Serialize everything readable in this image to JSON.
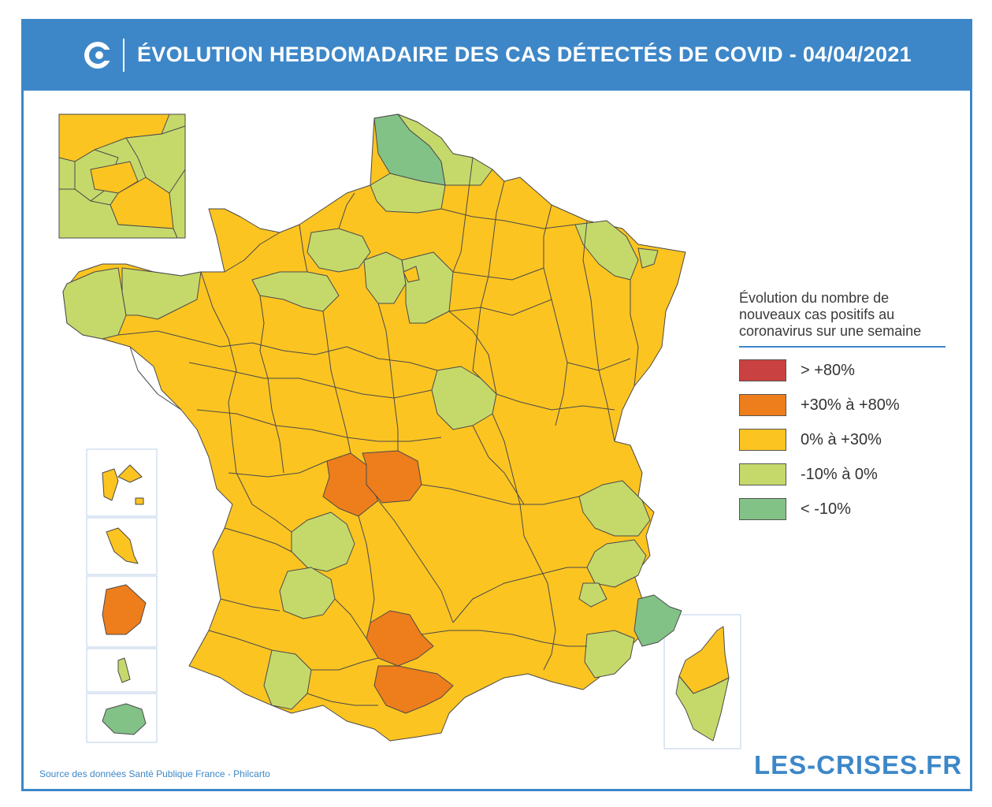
{
  "header": {
    "title": "ÉVOLUTION HEBDOMADAIRE DES CAS DÉTECTÉS DE COVID - 04/04/2021",
    "logo": "les-crises-logo-icon"
  },
  "legend": {
    "title_lines": [
      "Évolution du nombre de",
      "nouveaux cas positifs au",
      "coronavirus sur une semaine"
    ],
    "items": [
      {
        "label": "> +80%",
        "color": "#c94140"
      },
      {
        "label": "+30% à +80%",
        "color": "#ee7d1c"
      },
      {
        "label": "0% à +30%",
        "color": "#fbc421"
      },
      {
        "label": "-10% à 0%",
        "color": "#c5d96b"
      },
      {
        "label": "< -10%",
        "color": "#83c287"
      }
    ]
  },
  "map_colors": {
    "above_80": "#c94140",
    "plus30_80": "#ee7d1c",
    "plus0_30": "#fbc421",
    "minus10_0": "#c5d96b",
    "below_minus10": "#83c287",
    "border": "#4a4a4a"
  },
  "footer": {
    "source": "Source des données Santé Publique France - Philcarto",
    "brand": "LES-CRISES.FR"
  }
}
